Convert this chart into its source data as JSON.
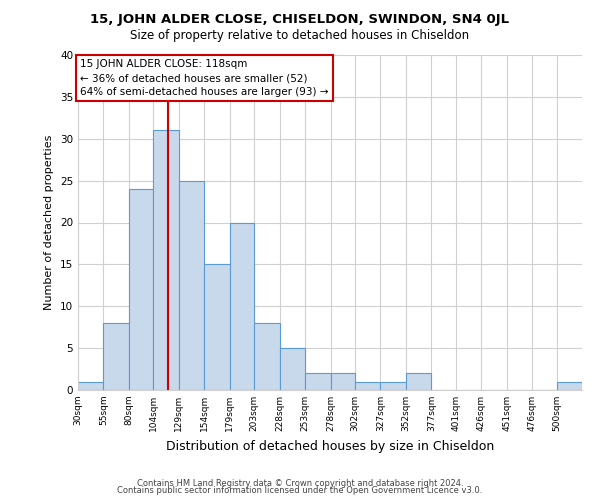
{
  "title_line1": "15, JOHN ALDER CLOSE, CHISELDON, SWINDON, SN4 0JL",
  "title_line2": "Size of property relative to detached houses in Chiseldon",
  "xlabel": "Distribution of detached houses by size in Chiseldon",
  "ylabel": "Number of detached properties",
  "bin_edges": [
    30,
    55,
    80,
    104,
    129,
    154,
    179,
    203,
    228,
    253,
    278,
    302,
    327,
    352,
    377,
    401,
    426,
    451,
    476,
    500,
    525
  ],
  "bin_counts": [
    1,
    8,
    24,
    31,
    25,
    15,
    20,
    8,
    5,
    2,
    2,
    1,
    1,
    2,
    0,
    0,
    0,
    0,
    0,
    1
  ],
  "property_size": 118,
  "bar_color": "#c9d9ec",
  "bar_edge_color": "#5b9bd5",
  "vline_color": "#cc0000",
  "vline_x": 118,
  "annotation_title": "15 JOHN ALDER CLOSE: 118sqm",
  "annotation_line1": "← 36% of detached houses are smaller (52)",
  "annotation_line2": "64% of semi-detached houses are larger (93) →",
  "box_edge_color": "#cc0000",
  "ylim": [
    0,
    40
  ],
  "yticks": [
    0,
    5,
    10,
    15,
    20,
    25,
    30,
    35,
    40
  ],
  "footer_line1": "Contains HM Land Registry data © Crown copyright and database right 2024.",
  "footer_line2": "Contains public sector information licensed under the Open Government Licence v3.0.",
  "grid_color": "#d0d0d0",
  "background_color": "#ffffff"
}
